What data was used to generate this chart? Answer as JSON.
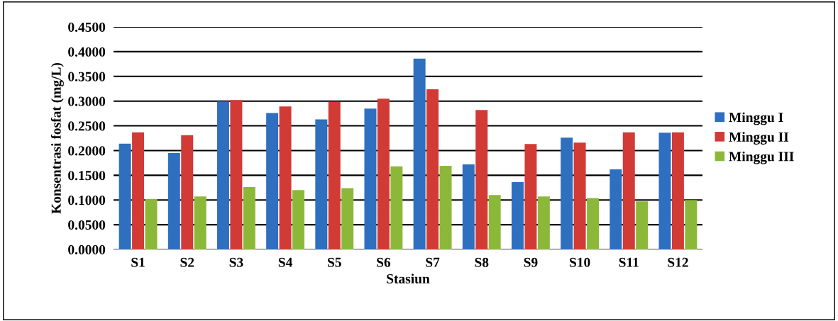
{
  "chart_data": {
    "type": "bar",
    "xlabel": "Stasiun",
    "ylabel": "Konsentrasi fosfat (mg/L)",
    "categories": [
      "S1",
      "S2",
      "S3",
      "S4",
      "S5",
      "S6",
      "S7",
      "S8",
      "S9",
      "S10",
      "S11",
      "S12"
    ],
    "series": [
      {
        "name": "Minggu I",
        "color": "#2e6fc0",
        "values": [
          0.214,
          0.195,
          0.299,
          0.276,
          0.263,
          0.285,
          0.386,
          0.172,
          0.136,
          0.226,
          0.162,
          0.236
        ]
      },
      {
        "name": "Minggu II",
        "color": "#d23a36",
        "values": [
          0.237,
          0.231,
          0.302,
          0.289,
          0.298,
          0.305,
          0.324,
          0.282,
          0.213,
          0.216,
          0.237,
          0.237
        ]
      },
      {
        "name": "Minggu III",
        "color": "#8cb83a",
        "values": [
          0.102,
          0.107,
          0.126,
          0.12,
          0.124,
          0.168,
          0.169,
          0.11,
          0.107,
          0.104,
          0.097,
          0.1
        ]
      }
    ],
    "ylim": [
      0,
      0.45
    ],
    "yticks": [
      {
        "value": 0,
        "label": "0.0000"
      },
      {
        "value": 0.05,
        "label": "0.0500"
      },
      {
        "value": 0.1,
        "label": "0.1000"
      },
      {
        "value": 0.15,
        "label": "0.1500"
      },
      {
        "value": 0.2,
        "label": "0.2000"
      },
      {
        "value": 0.25,
        "label": "0.2500"
      },
      {
        "value": 0.3,
        "label": "0.3000"
      },
      {
        "value": 0.35,
        "label": "0.3500"
      },
      {
        "value": 0.4,
        "label": "0.4000"
      },
      {
        "value": 0.45,
        "label": "0.4500"
      }
    ],
    "grid": "y",
    "legend": "right"
  }
}
